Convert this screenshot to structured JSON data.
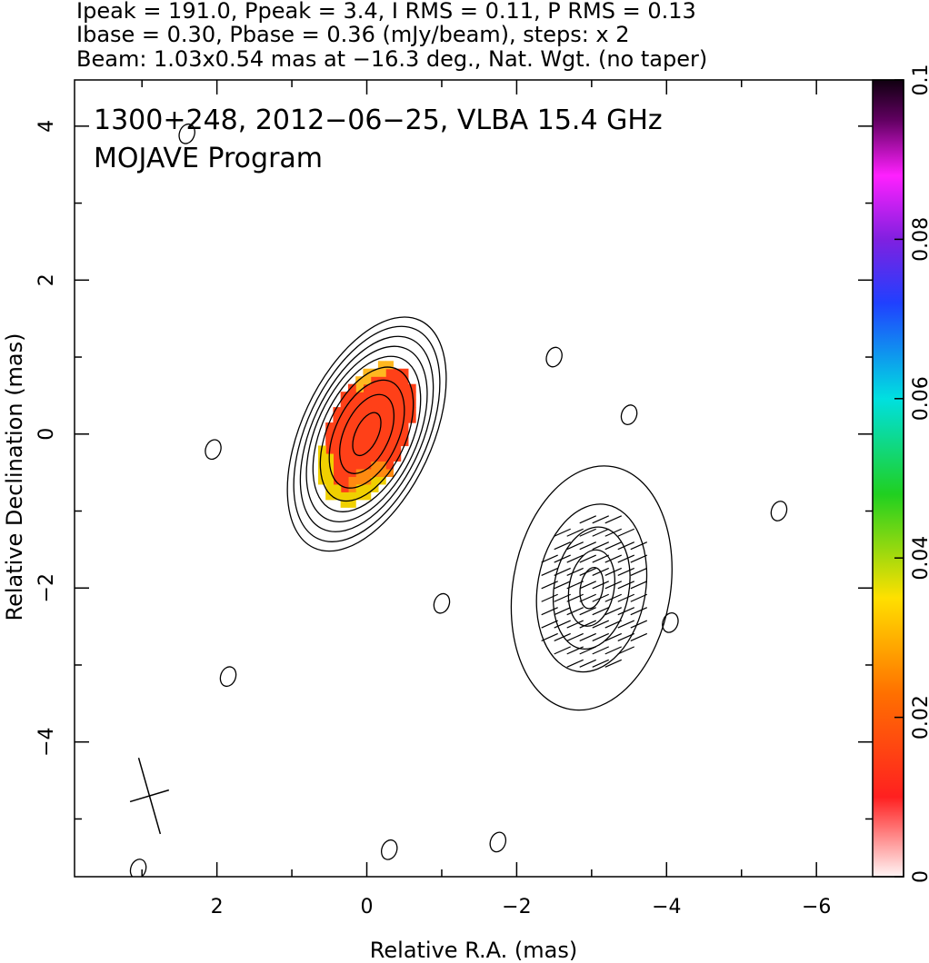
{
  "header": {
    "line1": "Ipeak = 191.0, Ppeak = 3.4, I RMS = 0.11, P RMS = 0.13",
    "line2": "Ibase = 0.30, Pbase = 0.36 (mJy/beam), steps: x 2",
    "line3": "Beam: 1.03x0.54 mas at −16.3 deg., Nat. Wgt. (no taper)"
  },
  "chart_data": {
    "type": "heatmap",
    "title": "1300+248, 2012−06−25, VLBA 15.4 GHz",
    "subtitle": "MOJAVE Program",
    "xlabel": "Relative R.A. (mas)",
    "ylabel": "Relative Declination (mas)",
    "xlim": [
      3.9,
      -6.75
    ],
    "ylim": [
      -5.75,
      4.6
    ],
    "x_reversed": true,
    "x_ticks": [
      2,
      0,
      -2,
      -4,
      -6
    ],
    "x_tick_labels": [
      "2",
      "0",
      "−2",
      "−4",
      "−6"
    ],
    "y_ticks": [
      4,
      2,
      0,
      -2,
      -4
    ],
    "y_tick_labels": [
      "4",
      "2",
      "0",
      "−2",
      "−4"
    ],
    "colorbar": {
      "range": [
        0,
        0.1
      ],
      "ticks": [
        0,
        0.02,
        0.04,
        0.06,
        0.08,
        0.1
      ],
      "tick_labels": [
        "0",
        "0.02",
        "0.04",
        "0.06",
        "0.08",
        "0.1"
      ],
      "colors": [
        "#fff5f5",
        "#ff2020",
        "#ff7000",
        "#ffe000",
        "#20d020",
        "#00e0e0",
        "#2040ff",
        "#8020e0",
        "#ff20ff",
        "#600060",
        "#100010"
      ]
    },
    "components": [
      {
        "name": "core",
        "x": 0.0,
        "y": 0.0,
        "pa": -25,
        "levels_mas": [
          [
            0.15,
            0.3
          ],
          [
            0.3,
            0.55
          ],
          [
            0.42,
            0.75
          ],
          [
            0.52,
            0.93
          ],
          [
            0.6,
            1.08
          ],
          [
            0.67,
            1.22
          ],
          [
            0.73,
            1.36
          ],
          [
            0.8,
            1.5
          ],
          [
            0.87,
            1.63
          ]
        ]
      },
      {
        "name": "feature-sw",
        "x": -3.0,
        "y": -2.0,
        "pa": -10,
        "levels_mas": [
          [
            0.15,
            0.27
          ],
          [
            0.3,
            0.5
          ],
          [
            0.5,
            0.8
          ],
          [
            0.72,
            1.1
          ],
          [
            1.05,
            1.6
          ]
        ]
      }
    ],
    "polarized_flux_region": {
      "x": 0.0,
      "y": 0.0,
      "pa": -25,
      "semi_axes": [
        0.52,
        0.98
      ],
      "dominant_value": 0.02
    },
    "evpa_region": {
      "x": -3.05,
      "y": -2.1,
      "semi_axes": [
        0.75,
        1.05
      ]
    },
    "noise_contours": [
      {
        "x": 2.4,
        "y": 3.9
      },
      {
        "x": 2.05,
        "y": -0.2
      },
      {
        "x": 1.85,
        "y": -3.15
      },
      {
        "x": 3.05,
        "y": -5.65
      },
      {
        "x": -0.3,
        "y": -5.4
      },
      {
        "x": -1.75,
        "y": -5.3
      },
      {
        "x": -1.0,
        "y": -2.2
      },
      {
        "x": -2.5,
        "y": 1.0
      },
      {
        "x": -3.5,
        "y": 0.25
      },
      {
        "x": -4.05,
        "y": -2.45
      },
      {
        "x": -5.5,
        "y": -1.0
      }
    ],
    "beam": {
      "x": 2.9,
      "y": -4.7,
      "major_mas": 1.03,
      "minor_mas": 0.54,
      "pa_deg": -16.3
    }
  }
}
